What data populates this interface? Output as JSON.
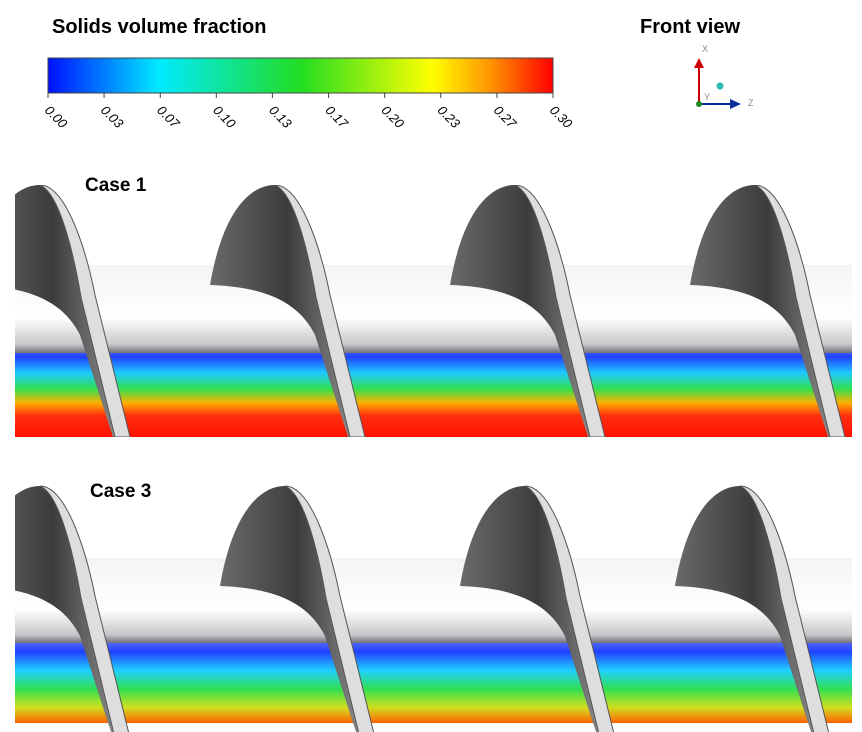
{
  "figure": {
    "colorbar": {
      "title": "Solids volume fraction",
      "range": [
        0,
        0.3
      ],
      "ticks": [
        {
          "value": 0,
          "label": "0.00"
        },
        {
          "value": 0.0333,
          "label": "0.03"
        },
        {
          "value": 0.0667,
          "label": "0.07"
        },
        {
          "value": 0.1,
          "label": "0.10"
        },
        {
          "value": 0.1333,
          "label": "0.13"
        },
        {
          "value": 0.1667,
          "label": "0.17"
        },
        {
          "value": 0.2,
          "label": "0.20"
        },
        {
          "value": 0.2333,
          "label": "0.23"
        },
        {
          "value": 0.2667,
          "label": "0.27"
        },
        {
          "value": 0.3,
          "label": "0.30"
        }
      ]
    },
    "view": {
      "title": "Front view",
      "axes": [
        "X",
        "Y",
        "Z"
      ]
    },
    "panels": [
      {
        "label": "Case 1"
      },
      {
        "label": "Case 3"
      }
    ]
  }
}
